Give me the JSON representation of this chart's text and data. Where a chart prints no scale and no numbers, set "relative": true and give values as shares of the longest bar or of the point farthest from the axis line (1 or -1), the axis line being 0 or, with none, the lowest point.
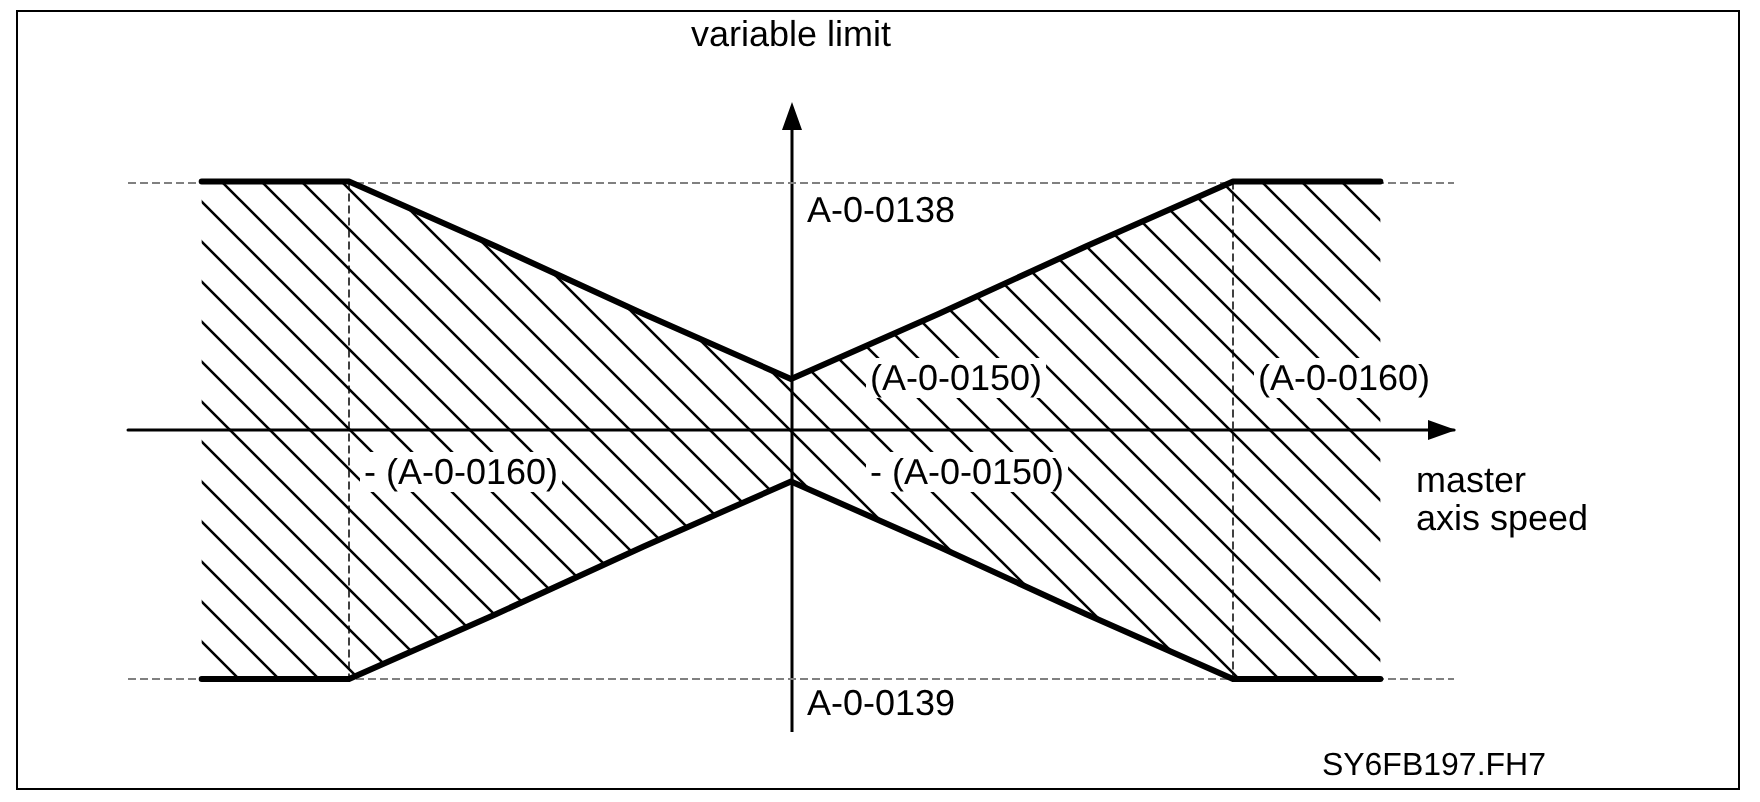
{
  "chart_data": {
    "type": "area",
    "relative": true,
    "xlabel": "master axis speed",
    "ylabel": "variable limit",
    "categories": [
      null,
      null,
      null,
      null,
      null,
      null,
      null,
      null,
      null
    ],
    "series": [
      {
        "color": "#000000",
        "values": [
          0.99,
          0.99,
          0.73,
          0.46,
          0.2,
          0.46,
          0.73,
          0.99,
          0.99
        ]
      },
      {
        "color": "#000000",
        "values": [
          -1,
          -1,
          -0.74,
          -0.47,
          -0.21,
          -0.47,
          -0.74,
          -1,
          -1
        ]
      }
    ],
    "ref_lines": [
      {
        "axis": "y",
        "value": 0.99,
        "label": "A-0-0138",
        "color": "#808080",
        "line_style": "dashed"
      },
      {
        "axis": "y",
        "value": -1,
        "label": "A-0-0139",
        "color": "#808080",
        "line_style": "dashed"
      }
    ],
    "annotations": [
      "(A-0-0150)",
      "- (A-0-0150)",
      "(A-0-0160)",
      "- (A-0-0160)",
      "SY6FB197.FH7"
    ]
  }
}
